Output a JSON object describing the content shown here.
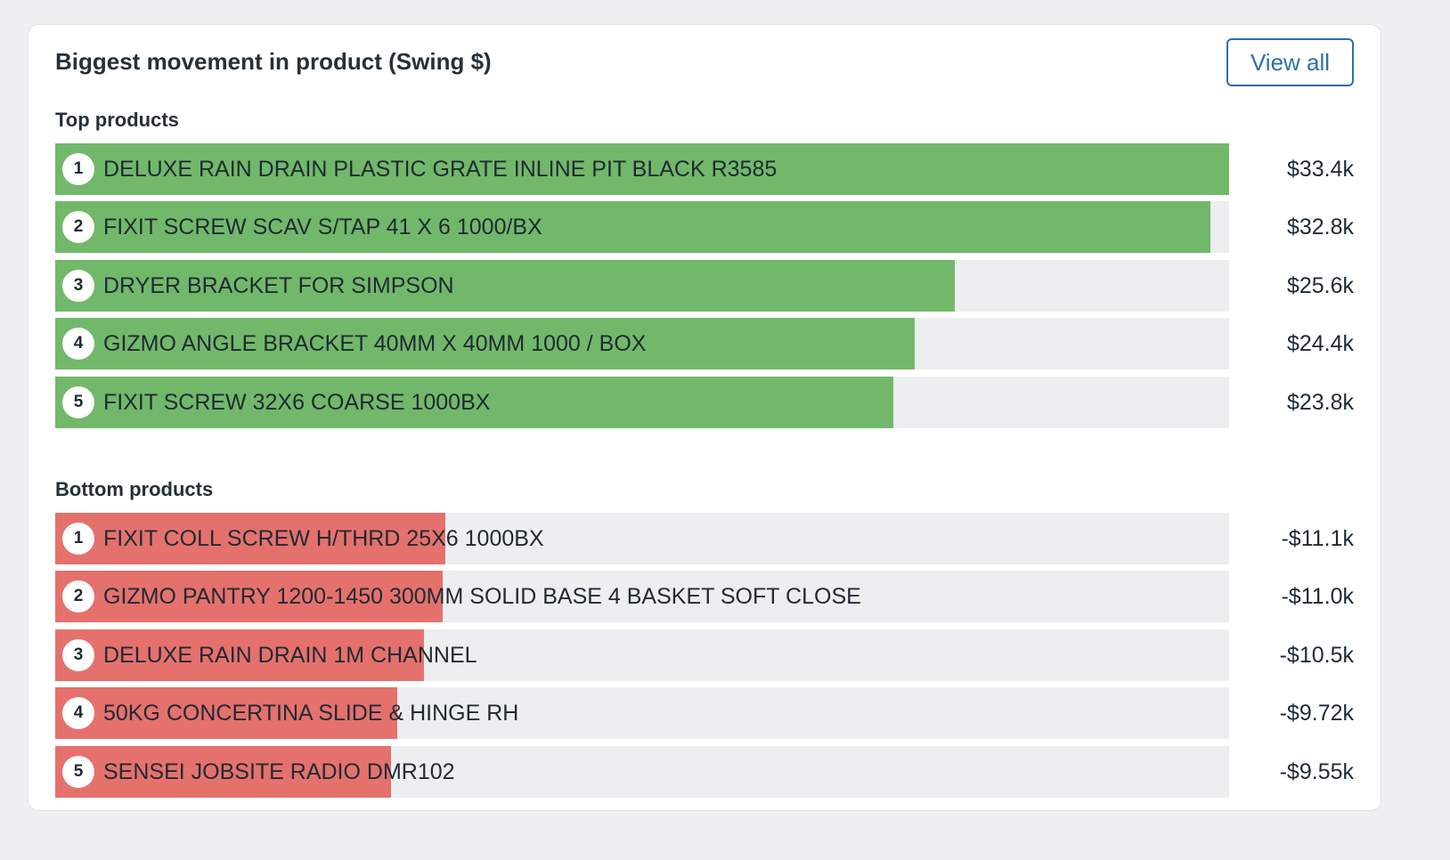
{
  "card": {
    "title": "Biggest movement in product (Swing $)",
    "view_all_label": "View all"
  },
  "colors": {
    "positive_bar": "#72b86a",
    "negative_bar": "#e5716d",
    "track": "#edeef0",
    "accent": "#2e6fa8"
  },
  "top": {
    "heading": "Top products",
    "items": [
      {
        "rank": "1",
        "name": "DELUXE RAIN DRAIN PLASTIC GRATE INLINE PIT BLACK R3585",
        "value": "$33.4k",
        "fraction": 1.0
      },
      {
        "rank": "2",
        "name": "FIXIT SCREW SCAV S/TAP 41 X 6 1000/BX",
        "value": "$32.8k",
        "fraction": 0.984
      },
      {
        "rank": "3",
        "name": "DRYER BRACKET FOR SIMPSON",
        "value": "$25.6k",
        "fraction": 0.766
      },
      {
        "rank": "4",
        "name": "GIZMO ANGLE BRACKET 40MM X 40MM 1000 / BOX",
        "value": "$24.4k",
        "fraction": 0.732
      },
      {
        "rank": "5",
        "name": "FIXIT SCREW 32X6 COARSE 1000BX",
        "value": "$23.8k",
        "fraction": 0.714
      }
    ]
  },
  "bottom": {
    "heading": "Bottom products",
    "items": [
      {
        "rank": "1",
        "name": "FIXIT COLL SCREW H/THRD 25X6 1000BX",
        "value": "-$11.1k",
        "fraction": 0.332
      },
      {
        "rank": "2",
        "name": "GIZMO PANTRY 1200-1450 300MM SOLID BASE 4 BASKET SOFT CLOSE",
        "value": "-$11.0k",
        "fraction": 0.33
      },
      {
        "rank": "3",
        "name": "DELUXE RAIN DRAIN 1M CHANNEL",
        "value": "-$10.5k",
        "fraction": 0.314
      },
      {
        "rank": "4",
        "name": "50KG CONCERTINA SLIDE & HINGE RH",
        "value": "-$9.72k",
        "fraction": 0.291
      },
      {
        "rank": "5",
        "name": "SENSEI JOBSITE RADIO DMR102",
        "value": "-$9.55k",
        "fraction": 0.286
      }
    ]
  }
}
